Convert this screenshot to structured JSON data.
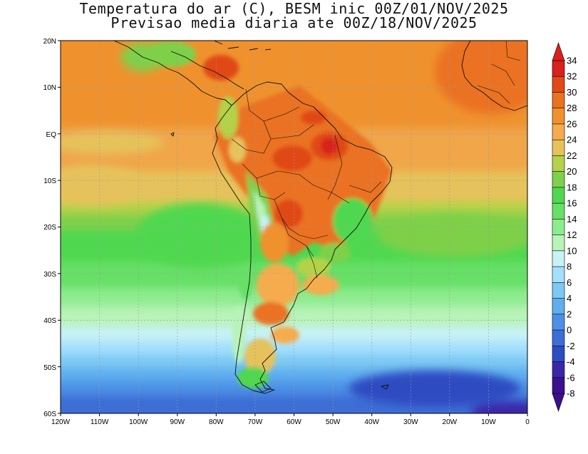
{
  "title": {
    "line1": "Temperatura do ar (C), BESM inic 00Z/01/NOV/2025",
    "line2": "Previsao media diaria ate 00Z/18/NOV/2025"
  },
  "map": {
    "region": "South America",
    "lon_range": [
      -120,
      0
    ],
    "lat_range": [
      -60,
      20
    ],
    "x_tick_labels": [
      "120W",
      "110W",
      "100W",
      "90W",
      "80W",
      "70W",
      "60W",
      "50W",
      "40W",
      "30W",
      "20W",
      "10W",
      "0"
    ],
    "y_tick_labels": [
      "20N",
      "10N",
      "EQ",
      "10S",
      "20S",
      "30S",
      "40S",
      "50S",
      "60S"
    ]
  },
  "colorbar": {
    "levels": [
      -8,
      -6,
      -4,
      -2,
      0,
      2,
      4,
      6,
      8,
      10,
      12,
      14,
      16,
      18,
      20,
      22,
      24,
      26,
      28,
      30,
      32,
      34
    ],
    "labels": [
      "34",
      "32",
      "30",
      "28",
      "26",
      "24",
      "22",
      "20",
      "18",
      "16",
      "14",
      "12",
      "10",
      "8",
      "6",
      "4",
      "2",
      "0",
      "-2",
      "-4",
      "-6",
      "-8"
    ],
    "colors": [
      "#3c0f8c",
      "#3a27a8",
      "#2e4cc2",
      "#3d6ed6",
      "#4c90e6",
      "#5faeee",
      "#7ccaf4",
      "#a4e0fb",
      "#c8f2f6",
      "#b8f3b7",
      "#8eec8f",
      "#66e066",
      "#4fd84f",
      "#7fd04a",
      "#b4d24a",
      "#e6c25c",
      "#f4ac4e",
      "#ef922e",
      "#ea7220",
      "#e04a18",
      "#d8201c"
    ]
  }
}
